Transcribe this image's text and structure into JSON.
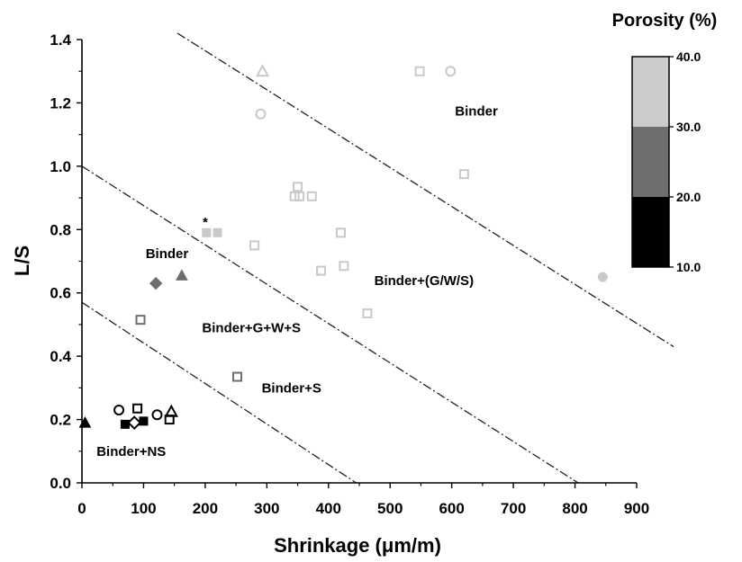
{
  "chart_data": {
    "type": "scatter",
    "xlabel": "Shrinkage (μm/m)",
    "ylabel": "L/S",
    "xlim": [
      0,
      900
    ],
    "ylim": [
      0,
      1.4
    ],
    "x_ticks": [
      "0",
      "100",
      "200",
      "300",
      "400",
      "500",
      "600",
      "700",
      "800",
      "900"
    ],
    "y_ticks": [
      "0.0",
      "0.2",
      "0.4",
      "0.6",
      "0.8",
      "1.0",
      "1.2",
      "1.4"
    ],
    "grid": false,
    "colorbar": {
      "title": "Porosity (%)",
      "ticks": [
        "10.0",
        "20.0",
        "30.0",
        "40.0"
      ],
      "bands": [
        {
          "from": 10,
          "to": 20,
          "color": "#000000"
        },
        {
          "from": 20,
          "to": 30,
          "color": "#6e6e6e"
        },
        {
          "from": 30,
          "to": 40,
          "color": "#cccccc"
        }
      ]
    },
    "boundary_lines": [
      {
        "x": [
          0,
          445
        ],
        "y": [
          0.57,
          0.0
        ]
      },
      {
        "x": [
          0,
          805
        ],
        "y": [
          1.0,
          0.0
        ]
      },
      {
        "x": [
          155,
          960
        ],
        "y": [
          1.42,
          0.43
        ]
      }
    ],
    "region_labels": [
      {
        "text": "Binder",
        "x": 640,
        "y": 1.16
      },
      {
        "text": "Binder",
        "x": 138,
        "y": 0.71
      },
      {
        "text": "Binder+(G/W/S)",
        "x": 555,
        "y": 0.625
      },
      {
        "text": "Binder+G+W+S",
        "x": 275,
        "y": 0.475
      },
      {
        "text": "Binder+S",
        "x": 340,
        "y": 0.285
      },
      {
        "text": "Binder+NS",
        "x": 80,
        "y": 0.085
      }
    ],
    "annotations": [
      {
        "text": "*",
        "x": 200,
        "y": 0.81
      }
    ],
    "points": [
      {
        "x": 293,
        "y": 1.3,
        "shape": "triangle",
        "fill": false,
        "color": "#c9c9c9"
      },
      {
        "x": 548,
        "y": 1.3,
        "shape": "square",
        "fill": false,
        "color": "#c9c9c9"
      },
      {
        "x": 598,
        "y": 1.3,
        "shape": "circle",
        "fill": false,
        "color": "#c9c9c9"
      },
      {
        "x": 290,
        "y": 1.165,
        "shape": "circle",
        "fill": false,
        "color": "#c9c9c9"
      },
      {
        "x": 620,
        "y": 0.975,
        "shape": "square",
        "fill": false,
        "color": "#c9c9c9"
      },
      {
        "x": 350,
        "y": 0.935,
        "shape": "square",
        "fill": false,
        "color": "#c9c9c9"
      },
      {
        "x": 345,
        "y": 0.905,
        "shape": "square",
        "fill": false,
        "color": "#c9c9c9"
      },
      {
        "x": 353,
        "y": 0.905,
        "shape": "square",
        "fill": false,
        "color": "#c9c9c9"
      },
      {
        "x": 373,
        "y": 0.905,
        "shape": "square",
        "fill": false,
        "color": "#c9c9c9"
      },
      {
        "x": 202,
        "y": 0.79,
        "shape": "square",
        "fill": true,
        "color": "#c9c9c9"
      },
      {
        "x": 220,
        "y": 0.79,
        "shape": "square",
        "fill": true,
        "color": "#c9c9c9"
      },
      {
        "x": 420,
        "y": 0.79,
        "shape": "square",
        "fill": false,
        "color": "#c9c9c9"
      },
      {
        "x": 280,
        "y": 0.75,
        "shape": "square",
        "fill": false,
        "color": "#c9c9c9"
      },
      {
        "x": 425,
        "y": 0.685,
        "shape": "square",
        "fill": false,
        "color": "#c9c9c9"
      },
      {
        "x": 388,
        "y": 0.67,
        "shape": "square",
        "fill": false,
        "color": "#c9c9c9"
      },
      {
        "x": 845,
        "y": 0.65,
        "shape": "circle",
        "fill": true,
        "color": "#c9c9c9"
      },
      {
        "x": 463,
        "y": 0.535,
        "shape": "square",
        "fill": false,
        "color": "#c9c9c9"
      },
      {
        "x": 120,
        "y": 0.63,
        "shape": "diamond",
        "fill": true,
        "color": "#6e6e6e"
      },
      {
        "x": 162,
        "y": 0.655,
        "shape": "triangle",
        "fill": true,
        "color": "#6e6e6e"
      },
      {
        "x": 95,
        "y": 0.515,
        "shape": "square",
        "fill": false,
        "color": "#6e6e6e"
      },
      {
        "x": 252,
        "y": 0.335,
        "shape": "square",
        "fill": false,
        "color": "#6e6e6e"
      },
      {
        "x": 5,
        "y": 0.19,
        "shape": "triangle",
        "fill": true,
        "color": "#000000"
      },
      {
        "x": 60,
        "y": 0.23,
        "shape": "circle",
        "fill": false,
        "color": "#000000"
      },
      {
        "x": 90,
        "y": 0.235,
        "shape": "square",
        "fill": false,
        "color": "#000000"
      },
      {
        "x": 122,
        "y": 0.215,
        "shape": "circle",
        "fill": false,
        "color": "#000000"
      },
      {
        "x": 145,
        "y": 0.225,
        "shape": "triangle",
        "fill": false,
        "color": "#000000"
      },
      {
        "x": 70,
        "y": 0.185,
        "shape": "square",
        "fill": true,
        "color": "#000000"
      },
      {
        "x": 85,
        "y": 0.19,
        "shape": "diamond",
        "fill": false,
        "color": "#000000"
      },
      {
        "x": 100,
        "y": 0.195,
        "shape": "square",
        "fill": true,
        "color": "#000000"
      },
      {
        "x": 142,
        "y": 0.2,
        "shape": "square",
        "fill": false,
        "color": "#000000"
      }
    ]
  }
}
